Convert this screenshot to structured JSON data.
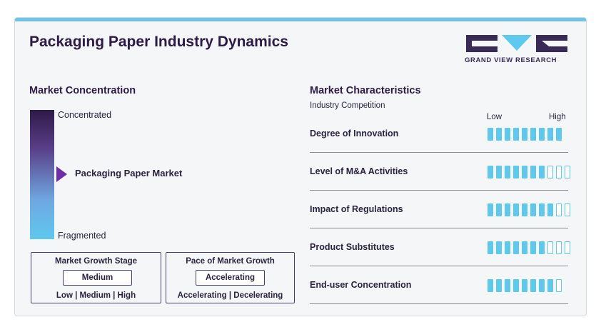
{
  "title": "Packaging Paper Industry Dynamics",
  "logo": {
    "text": "GRAND VIEW RESEARCH"
  },
  "concentration": {
    "heading": "Market Concentration",
    "top_label": "Concentrated",
    "bottom_label": "Fragmented",
    "market_label": "Packaging Paper Market"
  },
  "growth_stage": {
    "title": "Market Growth Stage",
    "value": "Medium",
    "range": "Low  |  Medium  |  High"
  },
  "growth_pace": {
    "title": "Pace of Market Growth",
    "value": "Accelerating",
    "range": "Accelerating  |  Decelerating"
  },
  "characteristics": {
    "heading": "Market Characteristics",
    "subheading": "Industry Competition",
    "low_label": "Low",
    "high_label": "High",
    "max_level": 10,
    "rows": [
      {
        "label": "Degree of Innovation",
        "level": 9,
        "total": 9
      },
      {
        "label": "Level of M&A Activities",
        "level": 7,
        "total": 10
      },
      {
        "label": "Impact of Regulations",
        "level": 8,
        "total": 10
      },
      {
        "label": "Product Substitutes",
        "level": 7,
        "total": 10
      },
      {
        "label": "End-user Concentration",
        "level": 8,
        "total": 9
      }
    ]
  },
  "colors": {
    "accent": "#5ec8ee",
    "dark": "#2e1a47",
    "marker": "#6f2da8"
  }
}
